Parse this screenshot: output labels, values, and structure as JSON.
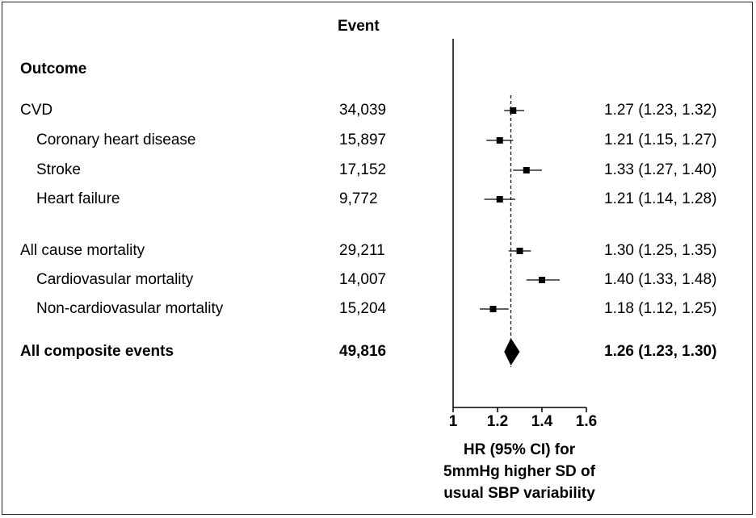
{
  "chart_data": {
    "type": "forest",
    "column_headers": {
      "outcome": "Outcome",
      "event": "Event"
    },
    "rows": [
      {
        "label": "CVD",
        "indent": false,
        "bold": false,
        "events": "34,039",
        "hr": 1.27,
        "lo": 1.23,
        "hi": 1.32,
        "hr_text": "1.27 (1.23, 1.32)",
        "marker": "square"
      },
      {
        "label": "Coronary heart disease",
        "indent": true,
        "bold": false,
        "events": "15,897",
        "hr": 1.21,
        "lo": 1.15,
        "hi": 1.27,
        "hr_text": "1.21 (1.15, 1.27)",
        "marker": "square"
      },
      {
        "label": "Stroke",
        "indent": true,
        "bold": false,
        "events": "17,152",
        "hr": 1.33,
        "lo": 1.27,
        "hi": 1.4,
        "hr_text": "1.33 (1.27, 1.40)",
        "marker": "square"
      },
      {
        "label": "Heart failure",
        "indent": true,
        "bold": false,
        "events": "9,772",
        "hr": 1.21,
        "lo": 1.14,
        "hi": 1.28,
        "hr_text": "1.21 (1.14, 1.28)",
        "marker": "square"
      },
      {
        "label": "All cause mortality",
        "indent": false,
        "bold": false,
        "events": "29,211",
        "hr": 1.3,
        "lo": 1.25,
        "hi": 1.35,
        "hr_text": "1.30 (1.25, 1.35)",
        "marker": "square"
      },
      {
        "label": "Cardiovasular mortality",
        "indent": true,
        "bold": false,
        "events": "14,007",
        "hr": 1.4,
        "lo": 1.33,
        "hi": 1.48,
        "hr_text": "1.40 (1.33, 1.48)",
        "marker": "square"
      },
      {
        "label": "Non-cardiovasular mortality",
        "indent": true,
        "bold": false,
        "events": "15,204",
        "hr": 1.18,
        "lo": 1.12,
        "hi": 1.25,
        "hr_text": "1.18 (1.12, 1.25)",
        "marker": "square"
      },
      {
        "label": "All composite events",
        "indent": false,
        "bold": true,
        "events": "49,816",
        "hr": 1.26,
        "lo": 1.23,
        "hi": 1.3,
        "hr_text": "1.26 (1.23, 1.30)",
        "marker": "diamond"
      }
    ],
    "reference_line": 1.26,
    "xlim": [
      1,
      1.6
    ],
    "xticks": [
      "1",
      "1.2",
      "1.4",
      "1.6"
    ],
    "xlabel_lines": [
      "HR (95% CI) for",
      "5mmHg higher SD of",
      "usual SBP variability"
    ],
    "colors": {
      "marker": "#000000",
      "line": "#000000"
    }
  }
}
